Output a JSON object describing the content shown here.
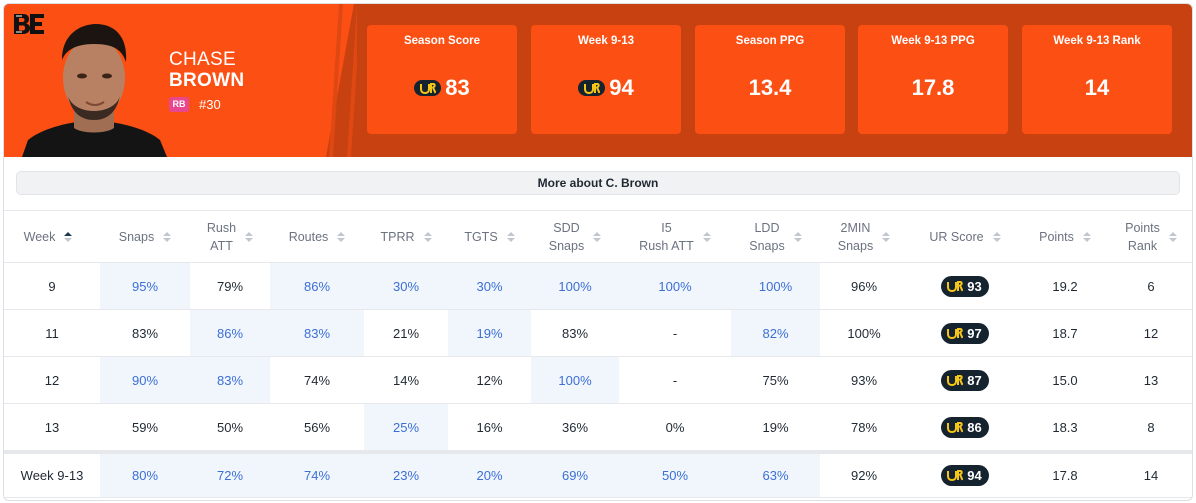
{
  "player": {
    "first_name": "CHASE",
    "last_name": "BROWN",
    "position": "RB",
    "number": "#30"
  },
  "colors": {
    "team_orange": "#fb4f14",
    "team_dark_orange": "#c74210",
    "position_badge": "#e8478f",
    "highlight_bg": "#f1f6fd",
    "highlight_text": "#3b6fd6",
    "ur_pill": "#14232e"
  },
  "stat_boxes": [
    {
      "label": "Season Score",
      "value": "83",
      "icon": "ur-logo-icon"
    },
    {
      "label": "Week 9-13",
      "value": "94",
      "icon": "ur-logo-icon"
    },
    {
      "label": "Season PPG",
      "value": "13.4"
    },
    {
      "label": "Week 9-13 PPG",
      "value": "17.8"
    },
    {
      "label": "Week 9-13 Rank",
      "value": "14"
    }
  ],
  "more_button": "More about C. Brown",
  "table": {
    "columns": [
      "Week",
      "Snaps",
      "Rush\nATT",
      "Routes",
      "TPRR",
      "TGTS",
      "SDD\nSnaps",
      "I5\nRush ATT",
      "LDD\nSnaps",
      "2MIN\nSnaps",
      "UR Score",
      "Points",
      "Points\nRank"
    ],
    "sorted_column": "Week",
    "rows": [
      [
        "9",
        "95%",
        "79%",
        "86%",
        "30%",
        "30%",
        "100%",
        "100%",
        "100%",
        "96%",
        "93",
        "19.2",
        "6"
      ],
      [
        "11",
        "83%",
        "86%",
        "83%",
        "21%",
        "19%",
        "83%",
        "-",
        "82%",
        "100%",
        "97",
        "18.7",
        "12"
      ],
      [
        "12",
        "90%",
        "83%",
        "74%",
        "14%",
        "12%",
        "100%",
        "-",
        "75%",
        "93%",
        "87",
        "15.0",
        "13"
      ],
      [
        "13",
        "59%",
        "50%",
        "56%",
        "25%",
        "16%",
        "36%",
        "0%",
        "19%",
        "78%",
        "86",
        "18.3",
        "8"
      ]
    ],
    "total": [
      "Week 9-13",
      "80%",
      "72%",
      "74%",
      "23%",
      "20%",
      "69%",
      "50%",
      "63%",
      "92%",
      "94",
      "17.8",
      "14"
    ]
  }
}
